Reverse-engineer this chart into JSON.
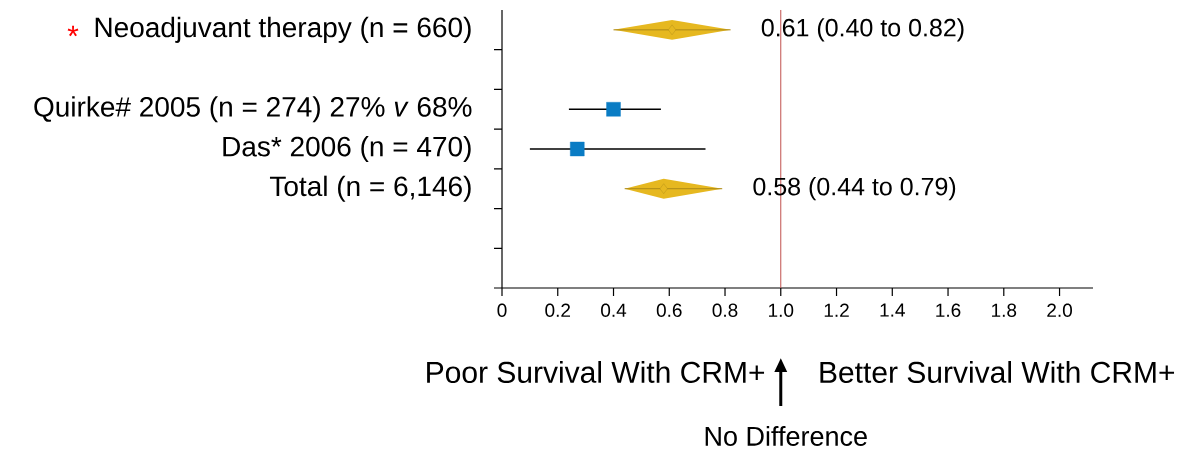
{
  "chart_data": {
    "type": "scatter",
    "orientation": "horizontal",
    "categories": [
      "Neoadjuvant therapy (n = 660)",
      null,
      "Quirke# 2005 (n = 274) 27% *v* 68%",
      "Das* 2006 (n = 470)",
      "Total (n = 6,146)",
      null,
      null
    ],
    "series": [
      {
        "marker": "square",
        "color": "#0a7cc4",
        "values": [
          null,
          null,
          0.4,
          0.27,
          null,
          null,
          null
        ],
        "errors": [
          null,
          null,
          [
            0.24,
            0.57
          ],
          [
            0.1,
            0.73
          ],
          null,
          null,
          null
        ]
      },
      {
        "marker": "diamond",
        "color": "#e6b820",
        "values": [
          0.61,
          null,
          null,
          null,
          0.58,
          null,
          null
        ],
        "errors": [
          [
            0.4,
            0.82
          ],
          null,
          null,
          null,
          [
            0.44,
            0.79
          ],
          null,
          null
        ],
        "value_labels": [
          "0.61 (0.40 to 0.82)",
          null,
          null,
          null,
          "0.58 (0.44 to 0.79)",
          null,
          null
        ]
      }
    ],
    "xlim": [
      0,
      2.12
    ],
    "xticks": [
      0,
      0.2,
      0.4,
      0.6,
      0.8,
      {
        "value": 1,
        "label": "1.0"
      },
      1.2,
      1.4,
      1.6,
      1.8,
      {
        "value": 2,
        "label": "2.0"
      }
    ],
    "ref_lines": [
      {
        "axis": "x",
        "value": 1,
        "color": "#c0504d"
      }
    ],
    "annotations": [
      "Poor Survival With CRM+",
      "Better Survival With CRM+",
      "No Difference",
      "*"
    ]
  }
}
